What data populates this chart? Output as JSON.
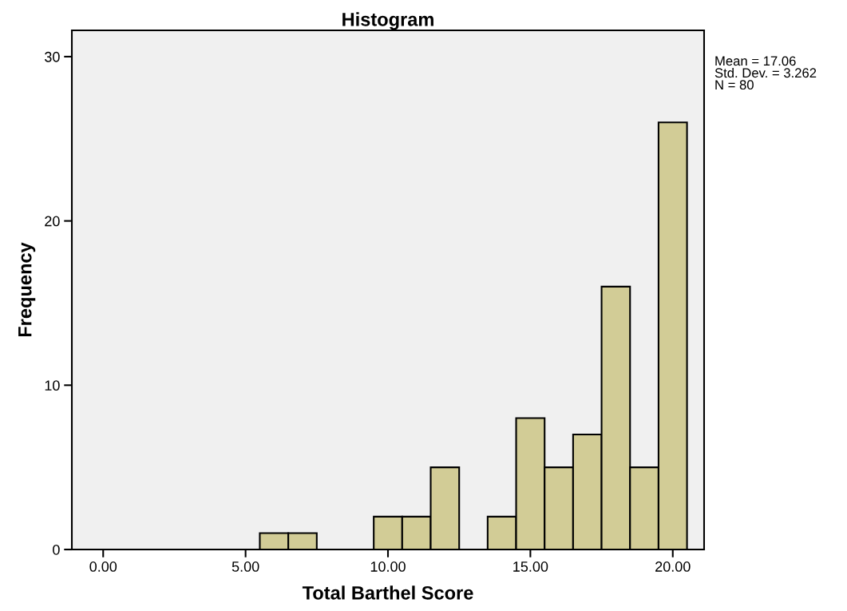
{
  "chart_data": {
    "type": "histogram",
    "title": "Histogram",
    "xlabel": "Total Barthel Score",
    "ylabel": "Frequency",
    "bins": [
      5.5,
      6.5,
      7.5,
      8.5,
      9.5,
      10.5,
      11.5,
      12.5,
      13.5,
      14.5,
      15.5,
      16.5,
      17.5,
      18.5,
      19.5,
      20.5
    ],
    "values": [
      1,
      1,
      0,
      0,
      2,
      2,
      5,
      0,
      2,
      8,
      5,
      7,
      16,
      5,
      26
    ],
    "color": "#d2cc96",
    "xlim": [
      -1.1,
      21.1
    ],
    "xticks": [
      {
        "value": 0,
        "label": "0.00"
      },
      {
        "value": 5,
        "label": "5.00"
      },
      {
        "value": 10,
        "label": "10.00"
      },
      {
        "value": 15,
        "label": "15.00"
      },
      {
        "value": 20,
        "label": "20.00"
      }
    ],
    "ylim": [
      0,
      31.6
    ],
    "yticks": [
      0,
      10,
      20,
      30
    ],
    "grid": false,
    "legend": false,
    "annotations": [
      "Mean = 17.06\nStd. Dev. = 3.262\nN = 80"
    ]
  }
}
